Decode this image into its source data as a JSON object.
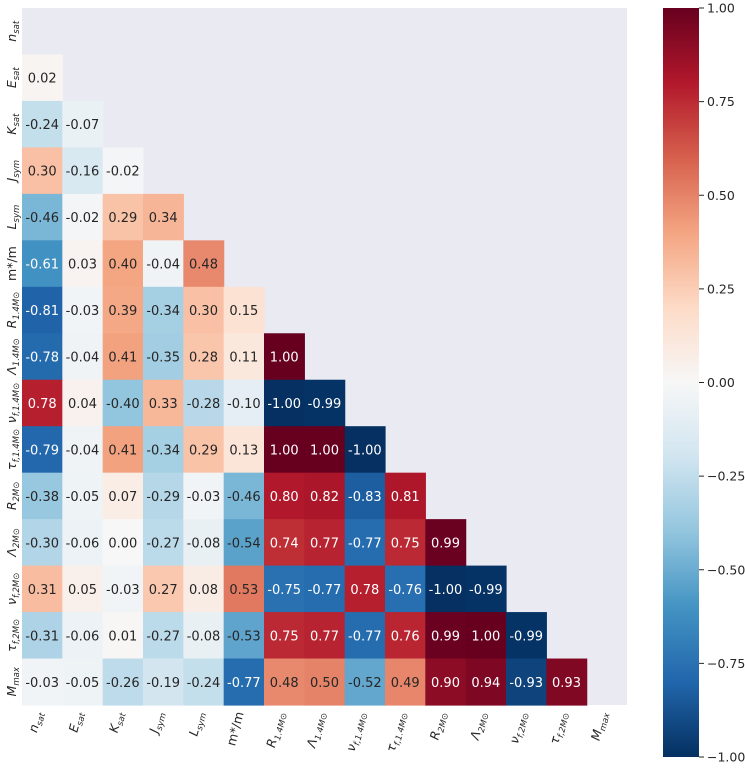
{
  "chart_data": {
    "type": "heatmap",
    "variables": [
      {
        "base": "n",
        "sub": "sat"
      },
      {
        "base": "E",
        "sub": "sat"
      },
      {
        "base": "K",
        "sub": "sat"
      },
      {
        "base": "J",
        "sub": "sym"
      },
      {
        "base": "L",
        "sub": "sym"
      },
      {
        "base": "m*/m",
        "sub": ""
      },
      {
        "base": "R",
        "sub": "1.4M⊙"
      },
      {
        "base": "Λ",
        "sub": "1.4M⊙"
      },
      {
        "base": "ν",
        "sub": "f,1.4M⊙"
      },
      {
        "base": "τ",
        "sub": "f,1.4M⊙"
      },
      {
        "base": "R",
        "sub": "2M⊙"
      },
      {
        "base": "Λ",
        "sub": "2M⊙"
      },
      {
        "base": "ν",
        "sub": "f,2M⊙"
      },
      {
        "base": "τ",
        "sub": "f,2M⊙"
      },
      {
        "base": "M",
        "sub": "max"
      }
    ],
    "matrix_lower": [
      [],
      [
        "0.02"
      ],
      [
        "-0.24",
        "-0.07"
      ],
      [
        "0.30",
        "-0.16",
        "-0.02"
      ],
      [
        "-0.46",
        "-0.02",
        "0.29",
        "0.34"
      ],
      [
        "-0.61",
        "0.03",
        "0.40",
        "-0.04",
        "0.48"
      ],
      [
        "-0.81",
        "-0.03",
        "0.39",
        "-0.34",
        "0.30",
        "0.15"
      ],
      [
        "-0.78",
        "-0.04",
        "0.41",
        "-0.35",
        "0.28",
        "0.11",
        "1.00"
      ],
      [
        "0.78",
        "0.04",
        "-0.40",
        "0.33",
        "-0.28",
        "-0.10",
        "-1.00",
        "-0.99"
      ],
      [
        "-0.79",
        "-0.04",
        "0.41",
        "-0.34",
        "0.29",
        "0.13",
        "1.00",
        "1.00",
        "-1.00"
      ],
      [
        "-0.38",
        "-0.05",
        "0.07",
        "-0.29",
        "-0.03",
        "-0.46",
        "0.80",
        "0.82",
        "-0.83",
        "0.81"
      ],
      [
        "-0.30",
        "-0.06",
        "0.00",
        "-0.27",
        "-0.08",
        "-0.54",
        "0.74",
        "0.77",
        "-0.77",
        "0.75",
        "0.99"
      ],
      [
        "0.31",
        "0.05",
        "-0.03",
        "0.27",
        "0.08",
        "0.53",
        "-0.75",
        "-0.77",
        "0.78",
        "-0.76",
        "-1.00",
        "-0.99"
      ],
      [
        "-0.31",
        "-0.06",
        "0.01",
        "-0.27",
        "-0.08",
        "-0.53",
        "0.75",
        "0.77",
        "-0.77",
        "0.76",
        "0.99",
        "1.00",
        "-0.99"
      ],
      [
        "-0.03",
        "-0.05",
        "-0.26",
        "-0.19",
        "-0.24",
        "-0.77",
        "0.48",
        "0.50",
        "-0.52",
        "0.49",
        "0.90",
        "0.94",
        "-0.93",
        "0.93"
      ]
    ],
    "mask": "upper triangle incl. diagonal",
    "colormap": "RdBu_r",
    "vmin": -1.0,
    "vmax": 1.0,
    "colorbar_ticks": [
      "-1.00",
      "-0.75",
      "-0.50",
      "-0.25",
      "0.00",
      "0.25",
      "0.50",
      "0.75",
      "1.00"
    ],
    "background_color": "#eaeaf2",
    "grid": false
  }
}
